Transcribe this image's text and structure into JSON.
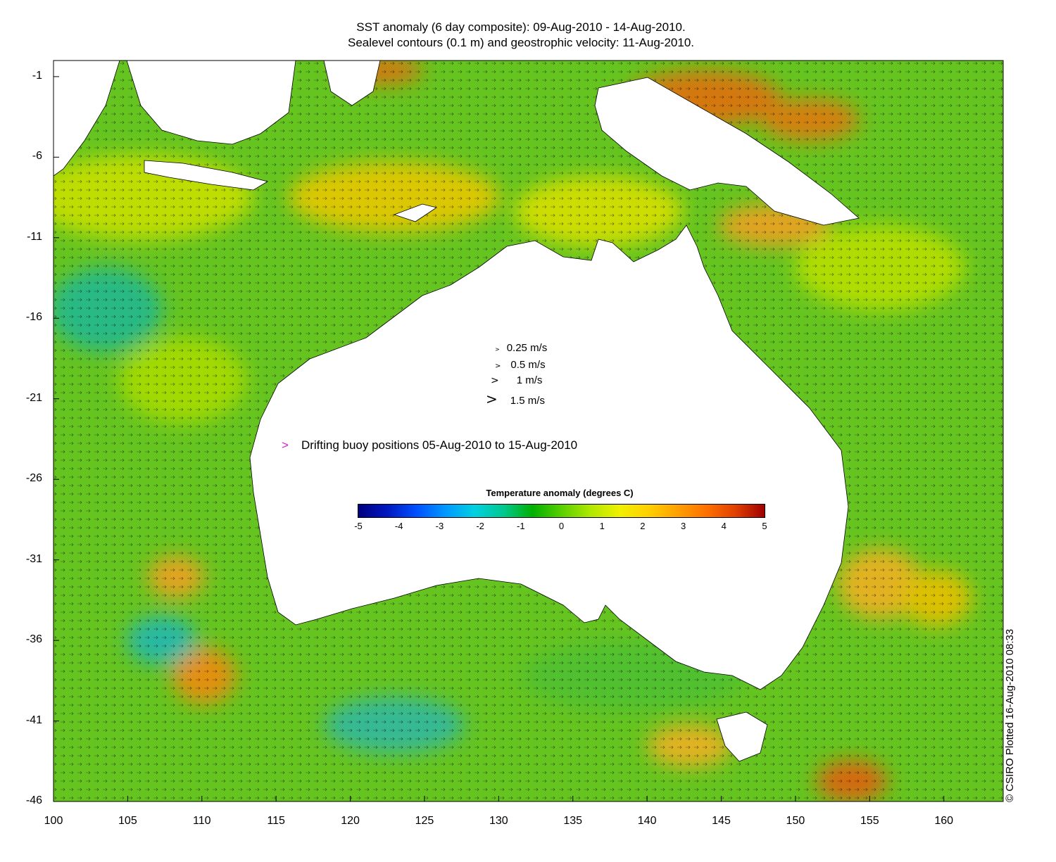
{
  "title": {
    "line1": "SST anomaly (6 day composite): 09-Aug-2010 - 14-Aug-2010.",
    "line2": "Sealevel contours (0.1 m) and geostrophic velocity: 11-Aug-2010."
  },
  "axes": {
    "x_ticks": [
      "100",
      "105",
      "110",
      "115",
      "120",
      "125",
      "130",
      "135",
      "140",
      "145",
      "150",
      "155",
      "160"
    ],
    "y_ticks": [
      "-1",
      "-6",
      "-11",
      "-16",
      "-21",
      "-26",
      "-31",
      "-36",
      "-41",
      "-46"
    ],
    "xlim": [
      100,
      164
    ],
    "ylim": [
      -46,
      0
    ]
  },
  "velocity_legend": [
    {
      "arrow": ">",
      "label": "0.25 m/s"
    },
    {
      "arrow": ">",
      "label": "0.5 m/s"
    },
    {
      "arrow": ">",
      "label": "1 m/s"
    },
    {
      "arrow": ">",
      "label": "1.5 m/s"
    }
  ],
  "buoy_legend": {
    "marker": ">",
    "label": "Drifting buoy positions 05-Aug-2010 to 15-Aug-2010",
    "color": "#d020d0"
  },
  "colorbar": {
    "title": "Temperature anomaly (degrees C)",
    "ticks": [
      "-5",
      "-4",
      "-3",
      "-2",
      "-1",
      "0",
      "1",
      "2",
      "3",
      "4",
      "5"
    ],
    "range": [
      -5,
      5
    ]
  },
  "credit": "© CSIRO Plotted 16-Aug-2010 08:33",
  "colors": {
    "ocean_base": "#6cc820",
    "land": "#ffffff",
    "warm": "#f0a020",
    "cool": "#20b0a0"
  }
}
